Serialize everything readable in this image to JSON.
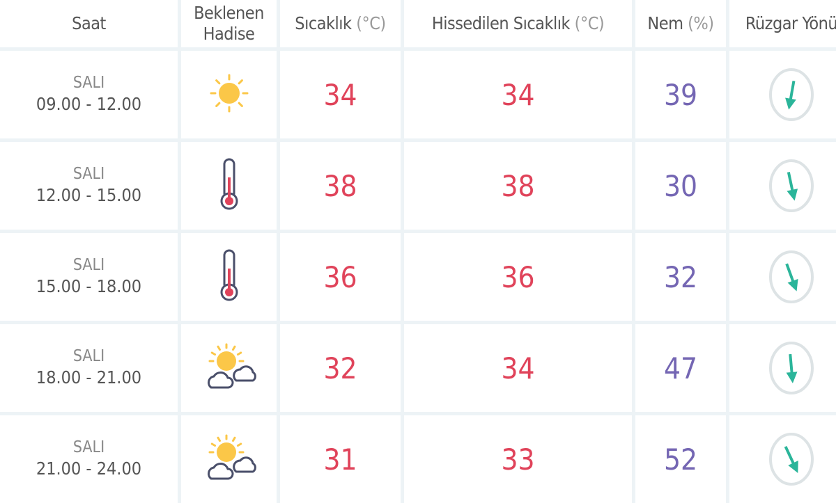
{
  "headers": {
    "saat": "Saat",
    "hadise_1": "Beklenen",
    "hadise_2": "Hadise",
    "sicaklik": "Sıcaklık",
    "sicaklik_unit": "(°C)",
    "hissedilen": "Hissedilen Sıcaklık",
    "hissedilen_unit": "(°C)",
    "nem": "Nem",
    "nem_unit": "(%)",
    "ruzgar": "Rüzgar Yönü"
  },
  "colors": {
    "temperature": "#e0435a",
    "humidity": "#7466b3",
    "wind_arrow": "#2bb59a",
    "grid": "#edf3f6"
  },
  "rows": [
    {
      "day": "SALI",
      "time": "09.00 - 12.00",
      "icon": "sun-icon",
      "temp": "34",
      "feels": "34",
      "humidity": "39",
      "wind_arrow_deg": 10
    },
    {
      "day": "SALI",
      "time": "12.00 - 15.00",
      "icon": "thermometer-icon",
      "temp": "38",
      "feels": "38",
      "humidity": "30",
      "wind_arrow_deg": -12
    },
    {
      "day": "SALI",
      "time": "15.00 - 18.00",
      "icon": "thermometer-icon",
      "temp": "36",
      "feels": "36",
      "humidity": "32",
      "wind_arrow_deg": -20
    },
    {
      "day": "SALI",
      "time": "18.00 - 21.00",
      "icon": "partly-cloudy-icon",
      "temp": "32",
      "feels": "34",
      "humidity": "47",
      "wind_arrow_deg": -5
    },
    {
      "day": "SALI",
      "time": "21.00 - 24.00",
      "icon": "partly-cloudy-icon",
      "temp": "31",
      "feels": "33",
      "humidity": "52",
      "wind_arrow_deg": -25
    }
  ]
}
